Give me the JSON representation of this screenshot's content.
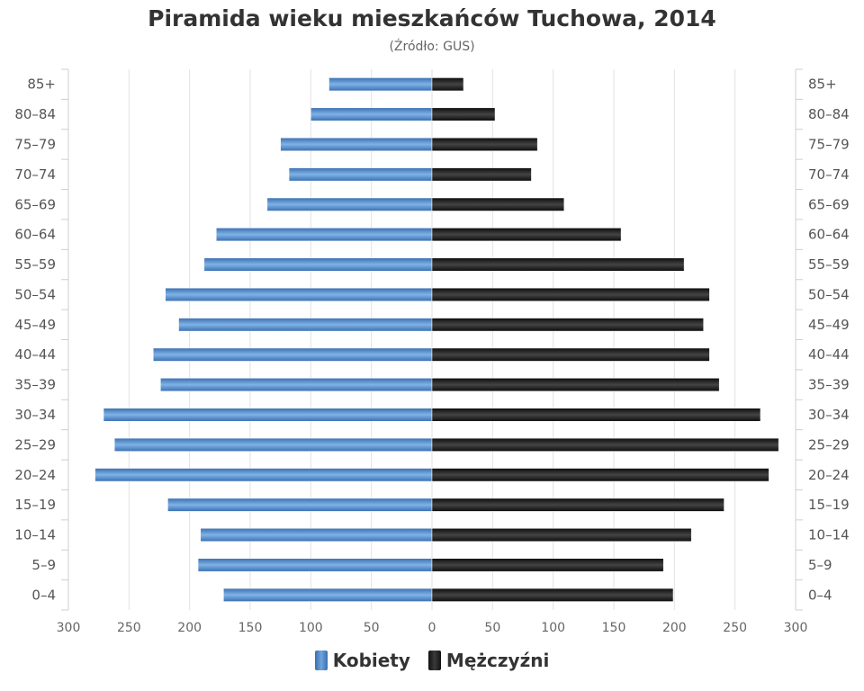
{
  "chart_data": {
    "type": "bar",
    "orientation": "horizontal",
    "title": "Piramida wieku mieszkańców Tuchowa, 2014",
    "subtitle": "(Źródło: GUS)",
    "categories": [
      "85+",
      "80–84",
      "75–79",
      "70–74",
      "65–69",
      "60–64",
      "55–59",
      "50–54",
      "45–49",
      "40–44",
      "35–39",
      "30–34",
      "25–29",
      "20–24",
      "15–19",
      "10–14",
      "5–9",
      "0–4"
    ],
    "series": [
      {
        "name": "Kobiety",
        "color": "#4a85c8",
        "values": [
          85,
          100,
          125,
          118,
          136,
          178,
          188,
          220,
          209,
          230,
          224,
          271,
          262,
          278,
          218,
          191,
          193,
          172
        ]
      },
      {
        "name": "Mężczyźni",
        "color": "#1a1a1a",
        "values": [
          26,
          52,
          87,
          82,
          109,
          156,
          208,
          229,
          224,
          229,
          237,
          271,
          286,
          278,
          241,
          214,
          191,
          199
        ]
      }
    ],
    "xlim": [
      -300,
      300
    ],
    "x_ticks": [
      "300",
      "250",
      "200",
      "150",
      "100",
      "50",
      "0",
      "50",
      "100",
      "150",
      "200",
      "250",
      "300"
    ],
    "grid": true,
    "legend_position": "bottom"
  }
}
